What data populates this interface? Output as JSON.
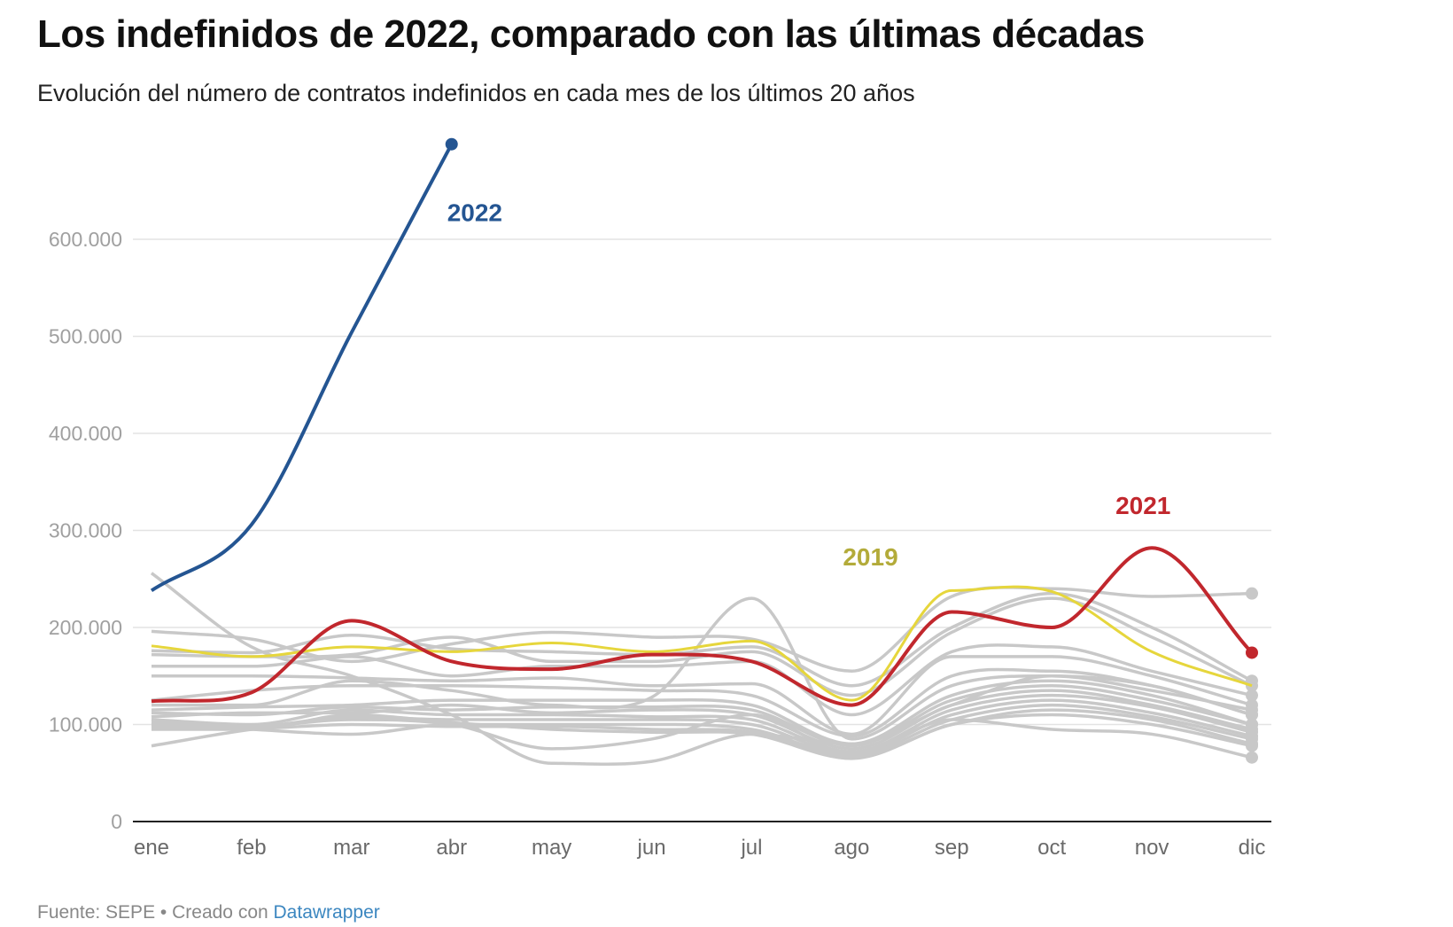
{
  "header": {
    "title": "Los indefinidos de 2022, comparado con las últimas décadas",
    "subtitle": "Evolución del número de contratos indefinidos en cada mes de los últimos 20 años"
  },
  "footer": {
    "source_label": "Fuente: SEPE",
    "separator": " • ",
    "created_with": "Creado con ",
    "tool_link": "Datawrapper"
  },
  "chart_data": {
    "type": "line",
    "title": "Los indefinidos de 2022, comparado con las últimas décadas",
    "subtitle": "Evolución del número de contratos indefinidos en cada mes de los últimos 20 años",
    "xlabel": "",
    "ylabel": "",
    "categories": [
      "ene",
      "feb",
      "mar",
      "abr",
      "may",
      "jun",
      "jul",
      "ago",
      "sep",
      "oct",
      "nov",
      "dic"
    ],
    "ylim": [
      0,
      700000
    ],
    "yticks": [
      0,
      100000,
      200000,
      300000,
      400000,
      500000,
      600000
    ],
    "ytick_labels": [
      "0",
      "100.000",
      "200.000",
      "300.000",
      "400.000",
      "500.000",
      "600.000"
    ],
    "grid": true,
    "highlight_colors": {
      "2022": "#245592",
      "2021": "#c1272d",
      "2019": "#e6d63c",
      "other": "#c8c8c8"
    },
    "label_colors": {
      "2022": "#245592",
      "2021": "#c1272d",
      "2019": "#b3ab3a"
    },
    "series": [
      {
        "name": "gris-1",
        "highlight": false,
        "values": [
          256000,
          180000,
          150000,
          110000,
          60000,
          62000,
          90000,
          80000,
          120000,
          150000,
          140000,
          110000
        ]
      },
      {
        "name": "gris-2",
        "highlight": false,
        "values": [
          196000,
          188000,
          165000,
          183000,
          195000,
          190000,
          188000,
          155000,
          232000,
          240000,
          232000,
          235000
        ]
      },
      {
        "name": "gris-3",
        "highlight": false,
        "values": [
          176000,
          174000,
          192000,
          178000,
          175000,
          172000,
          180000,
          140000,
          200000,
          235000,
          200000,
          145000
        ]
      },
      {
        "name": "gris-4",
        "highlight": false,
        "values": [
          172000,
          170000,
          172000,
          190000,
          165000,
          165000,
          175000,
          130000,
          195000,
          230000,
          190000,
          140000
        ]
      },
      {
        "name": "gris-5",
        "highlight": false,
        "values": [
          160000,
          160000,
          170000,
          150000,
          160000,
          160000,
          165000,
          110000,
          175000,
          180000,
          155000,
          130000
        ]
      },
      {
        "name": "gris-6",
        "highlight": false,
        "values": [
          150000,
          150000,
          148000,
          145000,
          148000,
          140000,
          142000,
          90000,
          170000,
          170000,
          150000,
          120000
        ]
      },
      {
        "name": "gris-7",
        "highlight": false,
        "values": [
          125000,
          135000,
          140000,
          140000,
          138000,
          135000,
          130000,
          88000,
          150000,
          155000,
          140000,
          110000
        ]
      },
      {
        "name": "gris-8",
        "highlight": false,
        "values": [
          120000,
          120000,
          145000,
          135000,
          120000,
          128000,
          230000,
          85000,
          140000,
          150000,
          135000,
          115000
        ]
      },
      {
        "name": "gris-9",
        "highlight": false,
        "values": [
          115000,
          118000,
          120000,
          125000,
          125000,
          125000,
          120000,
          80000,
          130000,
          145000,
          130000,
          100000
        ]
      },
      {
        "name": "gris-10",
        "highlight": false,
        "values": [
          112000,
          110000,
          118000,
          115000,
          118000,
          118000,
          115000,
          78000,
          125000,
          140000,
          125000,
          100000
        ]
      },
      {
        "name": "gris-11",
        "highlight": false,
        "values": [
          108000,
          112000,
          112000,
          120000,
          112000,
          115000,
          110000,
          75000,
          120000,
          135000,
          120000,
          95000
        ]
      },
      {
        "name": "gris-12",
        "highlight": false,
        "values": [
          105000,
          100000,
          115000,
          110000,
          110000,
          108000,
          105000,
          72000,
          115000,
          130000,
          118000,
          92000
        ]
      },
      {
        "name": "gris-13",
        "highlight": false,
        "values": [
          102000,
          98000,
          108000,
          105000,
          105000,
          105000,
          100000,
          70000,
          110000,
          125000,
          112000,
          88000
        ]
      },
      {
        "name": "gris-14",
        "highlight": false,
        "values": [
          100000,
          95000,
          90000,
          100000,
          100000,
          100000,
          95000,
          68000,
          105000,
          120000,
          108000,
          85000
        ]
      },
      {
        "name": "gris-15",
        "highlight": false,
        "values": [
          98000,
          96000,
          100000,
          98000,
          98000,
          95000,
          92000,
          66000,
          100000,
          115000,
          105000,
          80000
        ]
      },
      {
        "name": "gris-16",
        "highlight": false,
        "values": [
          95000,
          95000,
          110000,
          102000,
          95000,
          92000,
          90000,
          65000,
          100000,
          110000,
          100000,
          78000
        ]
      },
      {
        "name": "gris-17",
        "highlight": false,
        "values": [
          78000,
          95000,
          105000,
          100000,
          75000,
          85000,
          110000,
          70000,
          105000,
          95000,
          90000,
          66000
        ]
      },
      {
        "name": "2019",
        "highlight": true,
        "label": "2019",
        "values": [
          181000,
          170000,
          180000,
          175000,
          184000,
          175000,
          186000,
          125000,
          238000,
          237000,
          175000,
          140000
        ]
      },
      {
        "name": "2021",
        "highlight": true,
        "label": "2021",
        "values": [
          124000,
          133000,
          207000,
          165000,
          157000,
          172000,
          165000,
          120000,
          216000,
          200000,
          282000,
          174000
        ]
      },
      {
        "name": "2022",
        "highlight": true,
        "label": "2022",
        "values": [
          238000,
          306000,
          504000,
          698000
        ]
      }
    ],
    "annotations": [
      {
        "text": "2022",
        "series": "2022",
        "near": "abr"
      },
      {
        "text": "2019",
        "series": "2019",
        "near": "ago-sep"
      },
      {
        "text": "2021",
        "series": "2021",
        "near": "nov"
      }
    ]
  }
}
